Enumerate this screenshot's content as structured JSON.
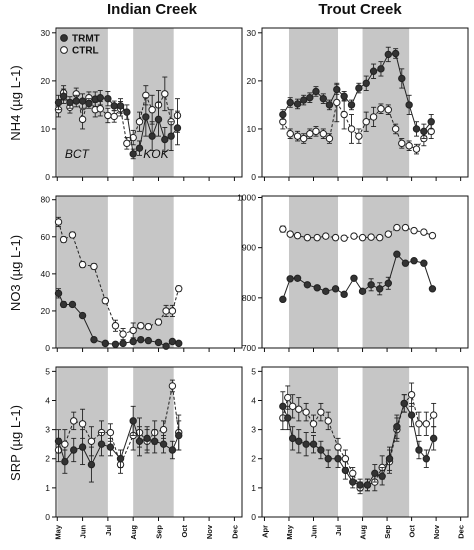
{
  "chart_data": [
    {
      "type": "line",
      "column_title": "Indian Creek",
      "ylabel": "NH4 (µg L-1)",
      "x_ticks": [
        "May",
        "Jun",
        "Jul",
        "Aug",
        "Sep",
        "Oct",
        "Nov",
        "Dec"
      ],
      "xlim": [
        0.95,
        8.3
      ],
      "ylim": [
        0,
        31
      ],
      "yticks": [
        0,
        10,
        20,
        30
      ],
      "shaded_periods": [
        [
          1.0,
          3.0
        ],
        [
          4.0,
          5.6
        ]
      ],
      "annotations": [
        {
          "text": "BCT",
          "x": 1.3,
          "y": 4
        },
        {
          "text": "KOK",
          "x": 4.4,
          "y": 4
        }
      ],
      "legend": {
        "position": "top-left",
        "entries": [
          "TRMT",
          "CTRL"
        ]
      },
      "series": [
        {
          "name": "TRMT",
          "marker": "filled",
          "linestyle": "solid",
          "x": [
            1.05,
            1.25,
            1.5,
            1.75,
            2.0,
            2.25,
            2.5,
            2.7,
            3.0,
            3.25,
            3.5,
            3.75,
            4.0,
            4.25,
            4.5,
            4.75,
            5.0,
            5.25,
            5.5,
            5.75
          ],
          "y": [
            15.5,
            16.8,
            15.5,
            15.8,
            15.8,
            15.3,
            16.2,
            16.5,
            16.3,
            14.8,
            14.8,
            13.5,
            4.8,
            6.0,
            12.5,
            8.5,
            12.0,
            7.8,
            8.5,
            10.2
          ],
          "err": [
            1.5,
            1.5,
            1.2,
            1.2,
            1.5,
            1.0,
            1.5,
            1.5,
            1.5,
            1.0,
            1.5,
            1.5,
            1.0,
            1.5,
            4.0,
            3.0,
            3.5,
            2.5,
            3.0,
            3.5
          ]
        },
        {
          "name": "CTRL",
          "marker": "open",
          "linestyle": "dashed",
          "x": [
            1.05,
            1.25,
            1.5,
            1.75,
            2.0,
            2.25,
            2.5,
            2.7,
            3.0,
            3.25,
            3.5,
            3.75,
            4.0,
            4.25,
            4.5,
            4.75,
            5.0,
            5.25,
            5.5,
            5.75
          ],
          "y": [
            14.0,
            17.5,
            14.5,
            17.3,
            12.0,
            16.5,
            14.0,
            14.2,
            12.8,
            12.6,
            14.2,
            7.0,
            8.2,
            11.5,
            17.0,
            14.0,
            15.0,
            17.3,
            11.5,
            12.8
          ],
          "err": [
            1.5,
            1.5,
            1.2,
            1.2,
            2.0,
            1.2,
            1.5,
            1.5,
            1.5,
            1.2,
            1.5,
            1.2,
            1.5,
            2.0,
            2.0,
            3.0,
            3.0,
            3.5,
            2.5,
            3.5
          ]
        }
      ]
    },
    {
      "type": "line",
      "column_title": "Trout Creek",
      "ylabel": "",
      "x_ticks": [
        "Apr",
        "May",
        "Jun",
        "Jul",
        "Aug",
        "Sep",
        "Oct",
        "Nov",
        "Dec"
      ],
      "xlim": [
        0.9,
        9.3
      ],
      "ylim": [
        0,
        31
      ],
      "yticks": [
        0,
        10,
        20,
        30
      ],
      "shaded_periods": [
        [
          2.0,
          4.0
        ],
        [
          5.0,
          6.9
        ]
      ],
      "series": [
        {
          "name": "TRMT",
          "marker": "filled",
          "linestyle": "solid",
          "x": [
            1.75,
            2.05,
            2.35,
            2.6,
            2.85,
            3.1,
            3.4,
            3.65,
            3.95,
            4.25,
            4.55,
            4.85,
            5.15,
            5.45,
            5.75,
            6.05,
            6.35,
            6.6,
            6.9,
            7.2,
            7.5,
            7.8
          ],
          "y": [
            13.0,
            15.5,
            15.2,
            16.0,
            16.5,
            17.8,
            16.3,
            15.0,
            18.2,
            16.8,
            15.0,
            18.5,
            19.5,
            22.0,
            22.5,
            25.5,
            25.7,
            20.5,
            15.0,
            10.0,
            9.5,
            11.5
          ],
          "err": [
            1.0,
            1.0,
            1.0,
            1.0,
            1.0,
            1.0,
            1.0,
            1.0,
            1.0,
            1.0,
            1.0,
            1.0,
            1.5,
            1.5,
            1.5,
            1.5,
            1.0,
            2.0,
            2.0,
            1.5,
            1.5,
            1.5
          ]
        },
        {
          "name": "CTRL",
          "marker": "open",
          "linestyle": "dashed",
          "x": [
            1.75,
            2.05,
            2.35,
            2.6,
            2.85,
            3.1,
            3.4,
            3.65,
            3.95,
            4.25,
            4.55,
            4.85,
            5.15,
            5.45,
            5.75,
            6.05,
            6.35,
            6.6,
            6.9,
            7.2,
            7.5,
            7.8
          ],
          "y": [
            11.5,
            9.0,
            8.5,
            8.0,
            9.0,
            9.5,
            9.0,
            8.0,
            15.5,
            13.0,
            10.0,
            8.5,
            11.5,
            12.5,
            14.2,
            14.0,
            10.0,
            7.0,
            6.5,
            5.8,
            8.0,
            9.5
          ],
          "err": [
            1.5,
            1.0,
            1.0,
            1.0,
            1.0,
            1.0,
            1.0,
            1.0,
            4.0,
            3.0,
            3.0,
            1.5,
            2.0,
            2.0,
            1.0,
            1.0,
            1.0,
            1.0,
            1.0,
            1.0,
            1.5,
            1.5
          ]
        }
      ]
    },
    {
      "type": "line",
      "ylabel": "NO3 (µg L-1)",
      "x_ticks": [
        "May",
        "Jun",
        "Jul",
        "Aug",
        "Sep",
        "Oct",
        "Nov",
        "Dec"
      ],
      "xlim": [
        0.95,
        8.3
      ],
      "ylim": [
        0,
        82
      ],
      "yticks": [
        0,
        20,
        40,
        60,
        80
      ],
      "shaded_periods": [
        [
          1.0,
          3.0
        ],
        [
          4.0,
          5.6
        ]
      ],
      "series": [
        {
          "name": "TRMT",
          "marker": "filled",
          "linestyle": "solid",
          "x": [
            1.05,
            1.25,
            1.6,
            2.0,
            2.45,
            2.9,
            3.3,
            3.6,
            4.0,
            4.3,
            4.6,
            5.0,
            5.3,
            5.55,
            5.8
          ],
          "y": [
            29.5,
            23.5,
            23.5,
            17.5,
            4.5,
            2.5,
            2.0,
            2.5,
            3.5,
            4.5,
            4.0,
            3.0,
            1.0,
            3.5,
            2.5
          ],
          "err": [
            2.5,
            1.5,
            1.0,
            1.0,
            1.0,
            0.5,
            0.5,
            0.5,
            0.5,
            0.8,
            0.8,
            0.5,
            0.5,
            0.8,
            0.5
          ]
        },
        {
          "name": "CTRL",
          "marker": "open",
          "linestyle": "dashed",
          "x": [
            1.05,
            1.25,
            1.6,
            2.0,
            2.45,
            2.9,
            3.3,
            3.6,
            4.0,
            4.3,
            4.6,
            5.0,
            5.3,
            5.55,
            5.8
          ],
          "y": [
            68.0,
            58.5,
            61.0,
            45.0,
            44.0,
            25.5,
            12.0,
            7.5,
            9.5,
            12.0,
            11.5,
            14.0,
            20.0,
            20.0,
            32.0
          ],
          "err": [
            2.5,
            1.5,
            1.5,
            1.5,
            1.5,
            1.5,
            3.0,
            3.0,
            4.0,
            1.5,
            1.5,
            1.5,
            3.0,
            3.0,
            1.5
          ]
        }
      ]
    },
    {
      "type": "line",
      "ylabel": "",
      "x_ticks": [
        "Apr",
        "May",
        "Jun",
        "Jul",
        "Aug",
        "Sep",
        "Oct",
        "Nov",
        "Dec"
      ],
      "xlim": [
        0.9,
        9.3
      ],
      "ylim": [
        700,
        1003
      ],
      "yticks": [
        700,
        800,
        900,
        1000
      ],
      "shaded_periods": [
        [
          2.0,
          4.0
        ],
        [
          5.0,
          6.9
        ]
      ],
      "series": [
        {
          "name": "TRMT",
          "marker": "filled",
          "linestyle": "solid",
          "x": [
            1.75,
            2.05,
            2.35,
            2.75,
            3.15,
            3.5,
            3.9,
            4.25,
            4.65,
            5.0,
            5.35,
            5.7,
            6.05,
            6.4,
            6.75,
            7.1,
            7.5,
            7.85
          ],
          "y": [
            797.0,
            838.0,
            839.0,
            826.0,
            820.0,
            813.0,
            818.0,
            807.0,
            839.0,
            813.0,
            826.0,
            818.0,
            829.0,
            887.0,
            869.0,
            874.0,
            869.0,
            818.0
          ],
          "err": [
            4.0,
            4.0,
            4.0,
            4.0,
            4.0,
            4.0,
            4.0,
            4.0,
            4.0,
            4.0,
            12.0,
            12.0,
            12.0,
            4.0,
            4.0,
            4.0,
            4.0,
            4.0
          ]
        },
        {
          "name": "CTRL",
          "marker": "open",
          "linestyle": "dashed",
          "x": [
            1.75,
            2.05,
            2.35,
            2.75,
            3.15,
            3.5,
            3.9,
            4.25,
            4.65,
            5.0,
            5.35,
            5.7,
            6.05,
            6.4,
            6.75,
            7.1,
            7.5,
            7.85
          ],
          "y": [
            937.0,
            927.0,
            924.0,
            920.0,
            920.0,
            923.0,
            920.0,
            919.0,
            923.0,
            920.0,
            921.0,
            920.0,
            927.0,
            940.0,
            940.0,
            934.0,
            931.0,
            924.0
          ],
          "err": [
            6.0,
            4.0,
            4.0,
            4.0,
            4.0,
            4.0,
            4.0,
            4.0,
            4.0,
            4.0,
            4.0,
            4.0,
            4.0,
            4.0,
            4.0,
            4.0,
            4.0,
            4.0
          ]
        }
      ]
    },
    {
      "type": "line",
      "ylabel": "SRP (µg L-1)",
      "x_ticks": [
        "May",
        "Jun",
        "Jul",
        "Aug",
        "Sep",
        "Oct",
        "Nov",
        "Dec"
      ],
      "xlim": [
        0.95,
        8.3
      ],
      "ylim": [
        0,
        5.15
      ],
      "yticks": [
        0,
        1,
        2,
        3,
        4,
        5
      ],
      "shaded_periods": [
        [
          1.0,
          3.0
        ],
        [
          4.0,
          5.6
        ]
      ],
      "series": [
        {
          "name": "TRMT",
          "marker": "filled",
          "linestyle": "solid",
          "x": [
            1.05,
            1.3,
            1.65,
            2.0,
            2.35,
            2.75,
            3.1,
            3.5,
            4.0,
            4.25,
            4.55,
            4.85,
            5.2,
            5.55,
            5.8
          ],
          "y": [
            2.6,
            1.9,
            2.3,
            2.4,
            1.8,
            2.5,
            2.4,
            2.0,
            3.3,
            2.6,
            2.7,
            2.6,
            2.5,
            2.3,
            2.8
          ],
          "err": [
            0.4,
            0.4,
            0.4,
            0.6,
            0.6,
            0.4,
            0.3,
            0.3,
            0.5,
            0.5,
            0.4,
            0.4,
            0.3,
            0.3,
            0.5
          ]
        },
        {
          "name": "CTRL",
          "marker": "open",
          "linestyle": "dashed",
          "x": [
            1.05,
            1.3,
            1.65,
            2.0,
            2.35,
            2.75,
            3.1,
            3.5,
            4.0,
            4.25,
            4.55,
            4.85,
            5.2,
            5.55,
            5.8
          ],
          "y": [
            2.3,
            2.5,
            3.3,
            3.2,
            2.6,
            2.9,
            2.9,
            1.8,
            2.8,
            2.9,
            2.6,
            2.9,
            3.0,
            4.5,
            2.9
          ],
          "err": [
            0.4,
            0.5,
            0.3,
            0.5,
            0.5,
            0.4,
            0.3,
            0.3,
            0.5,
            0.5,
            0.4,
            0.4,
            0.3,
            0.2,
            0.6
          ]
        }
      ]
    },
    {
      "type": "line",
      "ylabel": "",
      "x_ticks": [
        "Apr",
        "May",
        "Jun",
        "Jul",
        "Aug",
        "Sep",
        "Oct",
        "Nov",
        "Dec"
      ],
      "xlim": [
        0.9,
        9.3
      ],
      "ylim": [
        0,
        5.15
      ],
      "yticks": [
        0,
        1,
        2,
        3,
        4,
        5
      ],
      "shaded_periods": [
        [
          2.0,
          4.0
        ],
        [
          5.0,
          6.9
        ]
      ],
      "series": [
        {
          "name": "TRMT",
          "marker": "filled",
          "linestyle": "solid",
          "x": [
            1.75,
            1.95,
            2.15,
            2.4,
            2.7,
            3.0,
            3.3,
            3.6,
            4.0,
            4.3,
            4.6,
            4.9,
            5.2,
            5.5,
            5.8,
            6.1,
            6.4,
            6.7,
            7.0,
            7.3,
            7.6,
            7.9
          ],
          "y": [
            3.8,
            3.4,
            2.7,
            2.6,
            2.5,
            2.5,
            2.3,
            2.0,
            2.0,
            1.6,
            1.2,
            1.1,
            1.1,
            1.5,
            1.4,
            2.0,
            3.1,
            3.9,
            3.5,
            2.3,
            2.0,
            2.7
          ],
          "err": [
            0.5,
            0.4,
            0.4,
            0.4,
            0.4,
            0.3,
            0.3,
            0.3,
            0.3,
            0.3,
            0.2,
            0.2,
            0.2,
            0.3,
            0.3,
            0.4,
            0.4,
            0.3,
            0.4,
            0.3,
            0.3,
            0.4
          ]
        },
        {
          "name": "CTRL",
          "marker": "open",
          "linestyle": "dashed",
          "x": [
            1.75,
            1.95,
            2.15,
            2.4,
            2.7,
            3.0,
            3.3,
            3.6,
            4.0,
            4.3,
            4.6,
            4.9,
            5.2,
            5.5,
            5.8,
            6.1,
            6.4,
            6.7,
            7.0,
            7.3,
            7.6,
            7.9
          ],
          "y": [
            3.4,
            4.1,
            3.8,
            3.7,
            3.6,
            3.2,
            3.6,
            3.3,
            2.4,
            2.0,
            1.5,
            1.0,
            1.1,
            1.2,
            1.7,
            1.9,
            3.0,
            3.9,
            4.2,
            3.2,
            3.2,
            3.5
          ],
          "err": [
            0.4,
            0.4,
            0.4,
            0.4,
            0.3,
            0.3,
            0.3,
            0.3,
            0.3,
            0.3,
            0.2,
            0.2,
            0.2,
            0.3,
            0.4,
            0.4,
            0.4,
            0.3,
            0.4,
            0.4,
            0.4,
            0.4
          ]
        }
      ]
    }
  ]
}
